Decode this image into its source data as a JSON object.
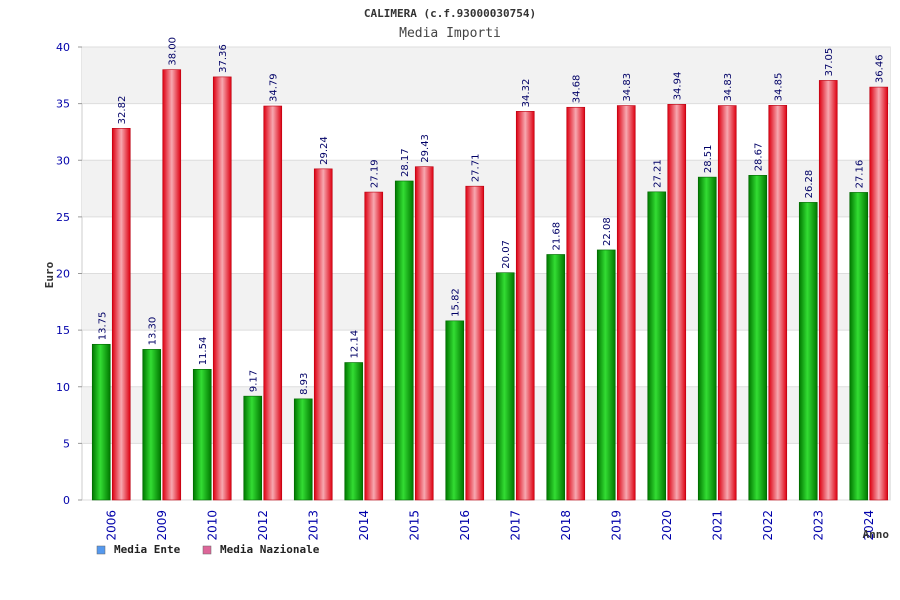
{
  "chart_data": {
    "type": "bar",
    "title": "CALIMERA (c.f.93000030754)",
    "subtitle": "Media Importi",
    "xlabel": "Anno",
    "ylabel": "Euro",
    "ylim": [
      0,
      40
    ],
    "yticks": [
      0,
      5,
      10,
      15,
      20,
      25,
      30,
      35,
      40
    ],
    "grid": true,
    "legend_position": "bottom-left",
    "categories": [
      "2006",
      "2009",
      "2010",
      "2012",
      "2013",
      "2014",
      "2015",
      "2016",
      "2017",
      "2018",
      "2019",
      "2020",
      "2021",
      "2022",
      "2023",
      "2024"
    ],
    "series": [
      {
        "name": "Media Ente",
        "color": "#00aa00",
        "legend_color": "#5599ee",
        "values": [
          13.75,
          13.3,
          11.54,
          9.17,
          8.93,
          12.14,
          28.17,
          15.82,
          20.07,
          21.68,
          22.08,
          27.21,
          28.51,
          28.67,
          26.28,
          27.16
        ],
        "labels": [
          "13.75",
          "13.30",
          "11.54",
          "9.17",
          "8.93",
          "12.14",
          "28.17",
          "15.82",
          "20.07",
          "21.68",
          "22.08",
          "27.21",
          "28.51",
          "28.67",
          "26.28",
          "27.16"
        ]
      },
      {
        "name": "Media Nazionale",
        "color": "#ee1122",
        "legend_color": "#dd6699",
        "values": [
          32.82,
          38.0,
          37.36,
          34.79,
          29.24,
          27.19,
          29.43,
          27.71,
          34.32,
          34.68,
          34.83,
          34.94,
          34.83,
          34.85,
          37.05,
          36.46
        ],
        "labels": [
          "32.82",
          "38.00",
          "37.36",
          "34.79",
          "29.24",
          "27.19",
          "29.43",
          "27.71",
          "34.32",
          "34.68",
          "34.83",
          "34.94",
          "34.83",
          "34.85",
          "37.05",
          "36.46"
        ]
      }
    ]
  }
}
